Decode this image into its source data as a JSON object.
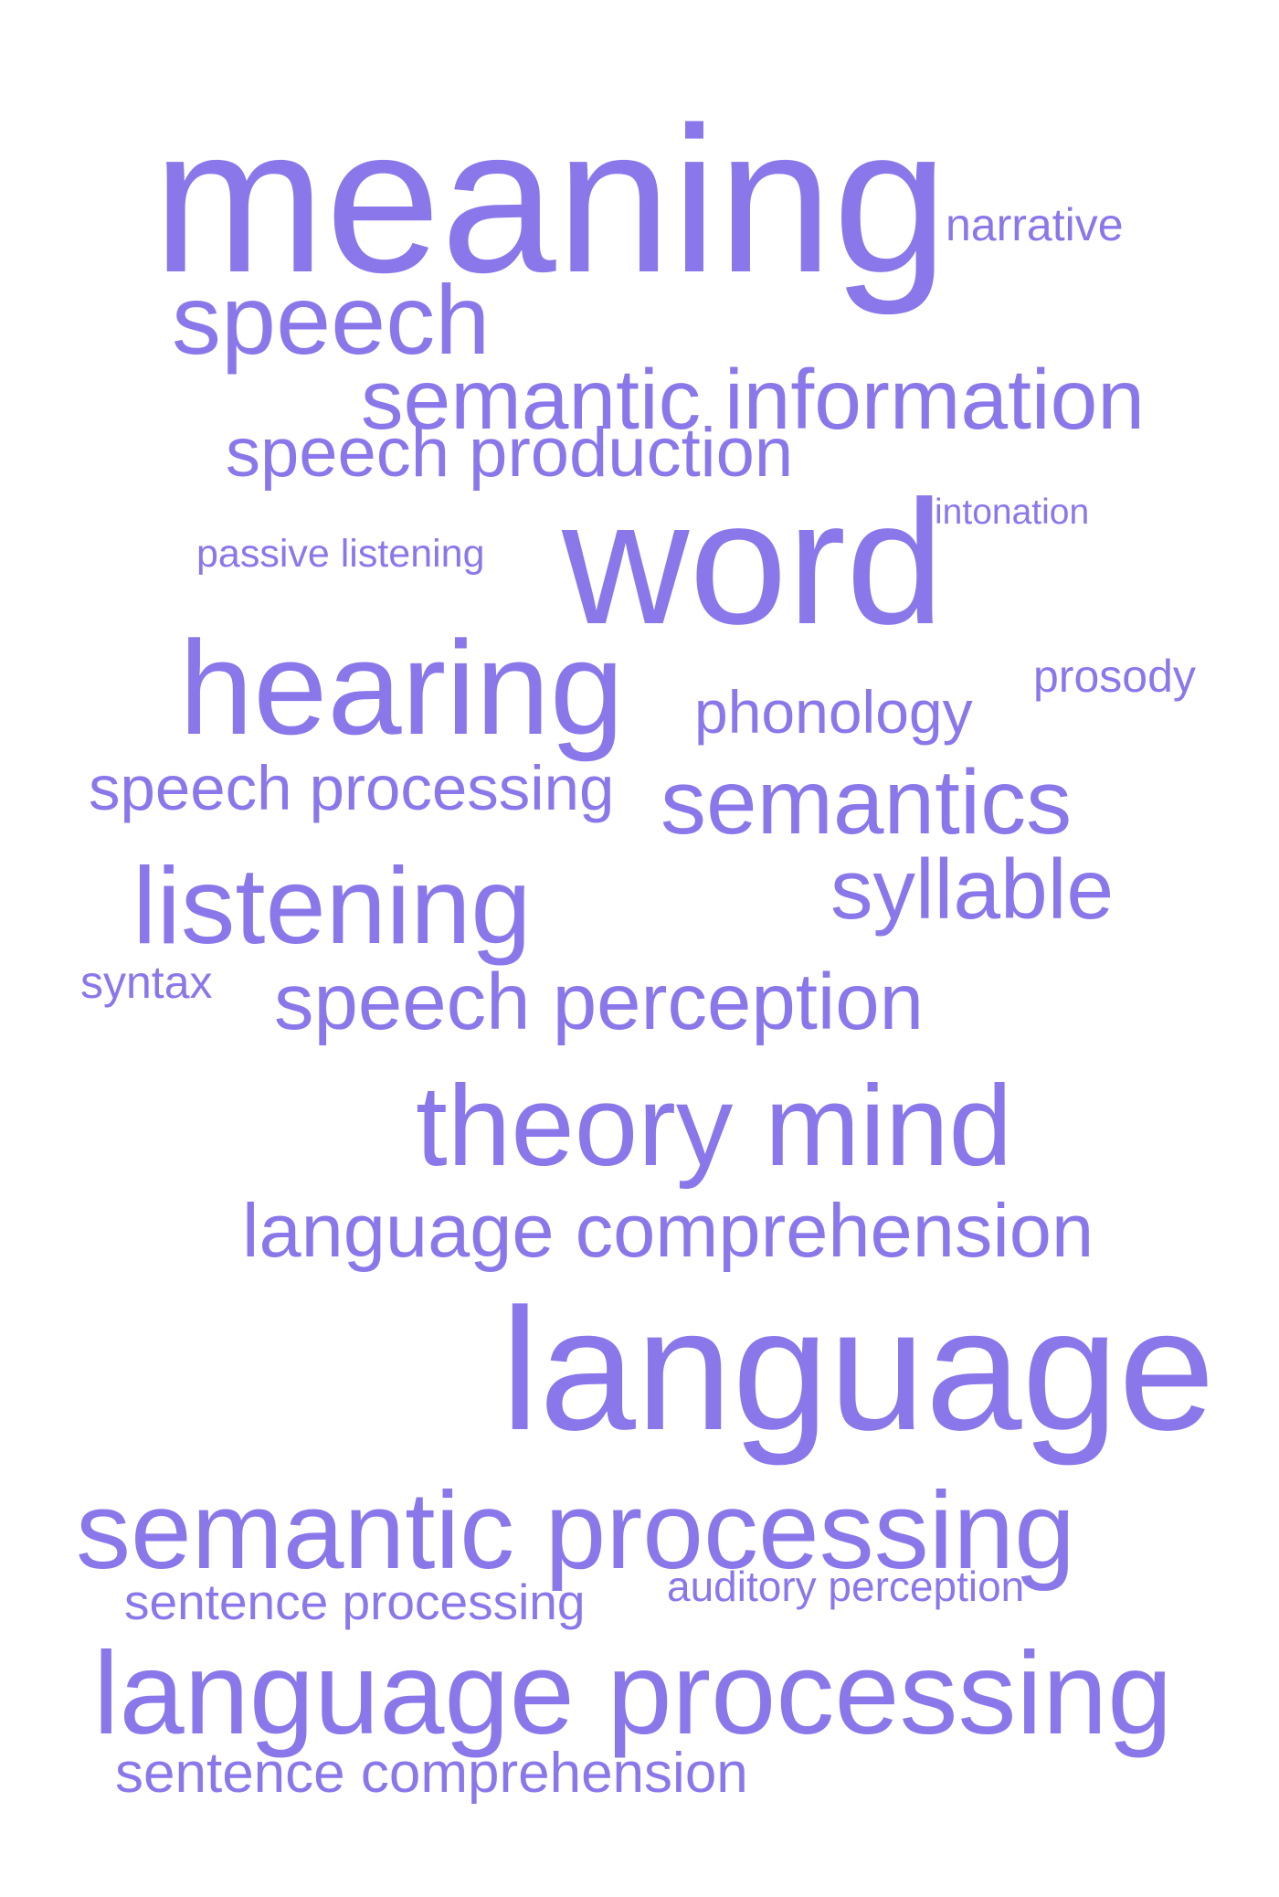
{
  "color": "#8a78ea",
  "words": [
    {
      "text": "meaning"
    },
    {
      "text": "narrative"
    },
    {
      "text": "speech"
    },
    {
      "text": "semantic information"
    },
    {
      "text": "speech production"
    },
    {
      "text": "intonation"
    },
    {
      "text": "passive listening"
    },
    {
      "text": "word"
    },
    {
      "text": "hearing"
    },
    {
      "text": "prosody"
    },
    {
      "text": "phonology"
    },
    {
      "text": "speech processing"
    },
    {
      "text": "semantics"
    },
    {
      "text": "listening"
    },
    {
      "text": "syllable"
    },
    {
      "text": "syntax"
    },
    {
      "text": "speech perception"
    },
    {
      "text": "theory mind"
    },
    {
      "text": "language comprehension"
    },
    {
      "text": "language"
    },
    {
      "text": "semantic processing"
    },
    {
      "text": "sentence processing"
    },
    {
      "text": "auditory perception"
    },
    {
      "text": "language processing"
    },
    {
      "text": "sentence comprehension"
    }
  ]
}
